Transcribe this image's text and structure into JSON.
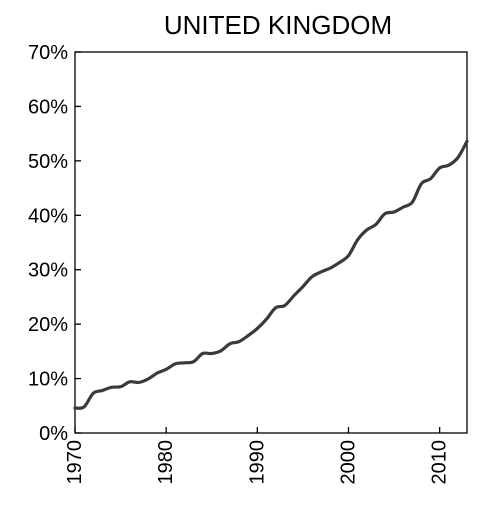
{
  "chart_data": {
    "type": "line",
    "title": "UNITED KINGDOM",
    "xlabel": "",
    "ylabel": "",
    "xlim": [
      1970,
      2013
    ],
    "ylim": [
      0,
      70
    ],
    "x_ticks": [
      1970,
      1980,
      1990,
      2000,
      2010
    ],
    "y_ticks": [
      0,
      10,
      20,
      30,
      40,
      50,
      60,
      70
    ],
    "y_tick_labels": [
      "0%",
      "10%",
      "20%",
      "30%",
      "40%",
      "50%",
      "60%",
      "70%"
    ],
    "x_tick_labels": [
      "1970",
      "1980",
      "1990",
      "2000",
      "2010"
    ],
    "grid": false,
    "legend": "none",
    "series": [
      {
        "color": "#3a3a3a",
        "x": [
          1970,
          1971,
          1972,
          1973,
          1974,
          1975,
          1976,
          1977,
          1978,
          1979,
          1980,
          1981,
          1982,
          1983,
          1984,
          1985,
          1986,
          1987,
          1988,
          1989,
          1990,
          1991,
          1992,
          1993,
          1994,
          1995,
          1996,
          1997,
          1998,
          1999,
          2000,
          2001,
          2002,
          2003,
          2004,
          2005,
          2006,
          2007,
          2008,
          2009,
          2010,
          2011,
          2012,
          2013
        ],
        "values": [
          4.6,
          4.8,
          7.3,
          7.8,
          8.4,
          8.5,
          9.4,
          9.3,
          9.9,
          11.0,
          11.7,
          12.7,
          12.9,
          13.1,
          14.6,
          14.6,
          15.1,
          16.4,
          16.8,
          17.9,
          19.2,
          20.9,
          23.0,
          23.4,
          25.2,
          26.9,
          28.7,
          29.6,
          30.3,
          31.3,
          32.6,
          35.5,
          37.3,
          38.3,
          40.3,
          40.6,
          41.5,
          42.4,
          45.8,
          46.7,
          48.7,
          49.2,
          50.6,
          53.6
        ]
      }
    ]
  }
}
